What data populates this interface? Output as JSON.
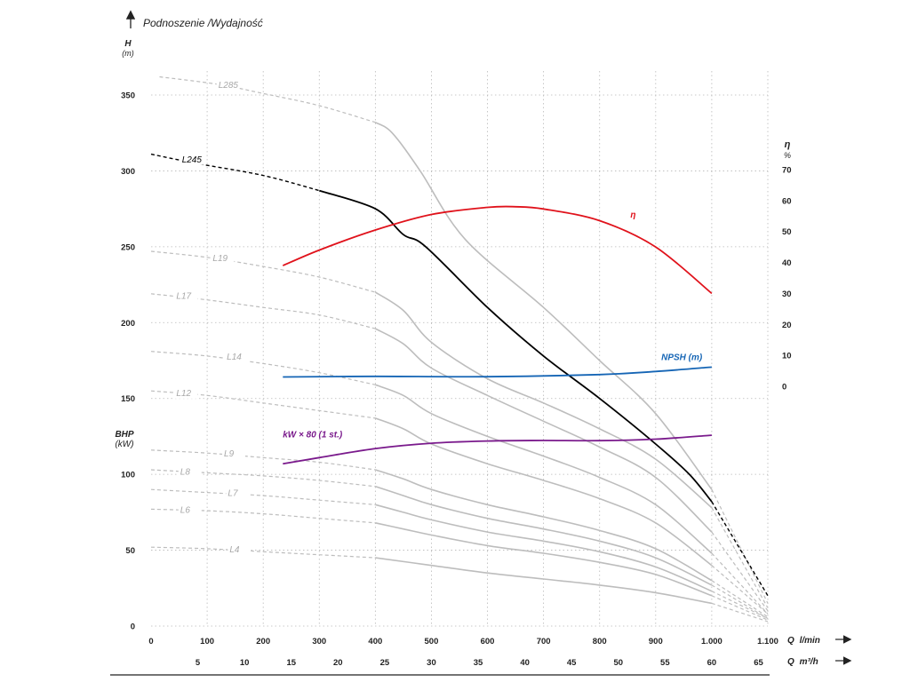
{
  "header": {
    "title": "Podnoszenie /Wydajność"
  },
  "chart_data": {
    "type": "line",
    "title": "Podnoszenie /Wydajność",
    "y_left": {
      "label": "H",
      "unit": "(m)",
      "ylim": [
        0,
        360
      ],
      "ticks": [
        0,
        50,
        100,
        150,
        200,
        250,
        300,
        350
      ]
    },
    "y_left_secondary": {
      "label": "BHP",
      "unit": "(kW)"
    },
    "y_right": {
      "label": "η",
      "unit": "%",
      "ylim": [
        0,
        70
      ],
      "ticks": [
        0,
        10,
        20,
        30,
        40,
        50,
        60,
        70
      ]
    },
    "x_primary": {
      "label": "Q",
      "unit": "l/min",
      "xlim": [
        0,
        1100
      ],
      "ticks": [
        0,
        100,
        200,
        300,
        400,
        500,
        600,
        700,
        800,
        900,
        1000,
        1100
      ],
      "tick_labels": [
        "0",
        "100",
        "200",
        "300",
        "400",
        "500",
        "600",
        "700",
        "800",
        "900",
        "1.000",
        "1.100"
      ]
    },
    "x_secondary": {
      "label": "Q",
      "unit": "m³/h",
      "ticks": [
        5,
        10,
        15,
        20,
        25,
        30,
        35,
        40,
        45,
        50,
        55,
        60,
        65
      ]
    },
    "grid": true,
    "series": [
      {
        "name": "L285",
        "color": "#bdbdbd",
        "x": [
          15,
          120,
          200,
          300,
          400,
          430,
          480,
          560,
          700,
          800,
          900,
          1000,
          1100
        ],
        "y": [
          362,
          357,
          351,
          343,
          332,
          325,
          300,
          255,
          210,
          175,
          140,
          90,
          15
        ]
      },
      {
        "name": "L245",
        "color": "#000000",
        "highlighted": true,
        "x": [
          0,
          80,
          200,
          300,
          400,
          450,
          490,
          600,
          700,
          800,
          900,
          960,
          1000,
          1100
        ],
        "y": [
          311,
          305,
          297,
          287,
          275,
          258,
          250,
          210,
          178,
          150,
          120,
          100,
          82,
          20
        ]
      },
      {
        "name": "L19",
        "color": "#bdbdbd",
        "x": [
          0,
          100,
          200,
          300,
          400,
          450,
          500,
          600,
          700,
          800,
          900,
          1000,
          1100
        ],
        "y": [
          247,
          243,
          237,
          230,
          220,
          208,
          187,
          163,
          147,
          130,
          110,
          78,
          12
        ]
      },
      {
        "name": "L17",
        "color": "#bdbdbd",
        "x": [
          0,
          100,
          200,
          300,
          400,
          450,
          500,
          600,
          700,
          800,
          900,
          1000,
          1100
        ],
        "y": [
          219,
          215,
          210,
          205,
          196,
          186,
          170,
          152,
          135,
          118,
          98,
          62,
          10
        ]
      },
      {
        "name": "L14",
        "color": "#bdbdbd",
        "x": [
          0,
          100,
          200,
          300,
          400,
          450,
          500,
          600,
          700,
          800,
          900,
          1000,
          1100
        ],
        "y": [
          181,
          178,
          173,
          167,
          159,
          152,
          140,
          125,
          112,
          98,
          80,
          48,
          8
        ]
      },
      {
        "name": "L12",
        "color": "#bdbdbd",
        "x": [
          0,
          100,
          200,
          300,
          400,
          450,
          500,
          600,
          700,
          800,
          900,
          1000,
          1100
        ],
        "y": [
          155,
          152,
          147,
          142,
          137,
          130,
          120,
          107,
          96,
          84,
          68,
          40,
          8
        ]
      },
      {
        "name": "L9",
        "color": "#bdbdbd",
        "x": [
          0,
          100,
          200,
          300,
          400,
          450,
          500,
          600,
          700,
          800,
          900,
          1000,
          1100
        ],
        "y": [
          116,
          114,
          111,
          108,
          103,
          97,
          90,
          80,
          72,
          63,
          51,
          30,
          6
        ]
      },
      {
        "name": "L8",
        "color": "#bdbdbd",
        "x": [
          0,
          100,
          200,
          300,
          400,
          450,
          500,
          600,
          700,
          800,
          900,
          1000,
          1100
        ],
        "y": [
          103,
          101,
          99,
          96,
          92,
          86,
          80,
          71,
          64,
          56,
          45,
          27,
          5
        ]
      },
      {
        "name": "L7",
        "color": "#bdbdbd",
        "x": [
          0,
          100,
          200,
          300,
          400,
          450,
          500,
          600,
          700,
          800,
          900,
          1000,
          1100
        ],
        "y": [
          90,
          88,
          86,
          83,
          80,
          75,
          70,
          62,
          56,
          49,
          39,
          23,
          5
        ]
      },
      {
        "name": "L6",
        "color": "#bdbdbd",
        "x": [
          0,
          100,
          200,
          300,
          400,
          450,
          500,
          600,
          700,
          800,
          900,
          1000,
          1100
        ],
        "y": [
          77,
          76,
          74,
          71,
          68,
          64,
          60,
          53,
          48,
          42,
          34,
          20,
          4
        ]
      },
      {
        "name": "L4",
        "color": "#bdbdbd",
        "x": [
          0,
          100,
          200,
          300,
          400,
          500,
          600,
          700,
          800,
          900,
          1000,
          1100
        ],
        "y": [
          52,
          51,
          49,
          47,
          45,
          40,
          35,
          31,
          27,
          22,
          15,
          3
        ]
      },
      {
        "name": "η",
        "color": "#e0121b",
        "axis": "right",
        "x": [
          235,
          300,
          400,
          500,
          600,
          650,
          700,
          800,
          900,
          1000
        ],
        "y": [
          39,
          44,
          50.5,
          55.5,
          57.8,
          58,
          57.3,
          53.5,
          45,
          30
        ]
      },
      {
        "name": "NPSH (m)",
        "color": "#1565b5",
        "axis": "right",
        "x": [
          235,
          400,
          600,
          800,
          900,
          1000
        ],
        "y": [
          3.0,
          3.2,
          3.1,
          3.8,
          4.8,
          6.2
        ]
      },
      {
        "name": "kW × 80 (1 st.)",
        "color": "#7a1a8c",
        "x": [
          235,
          300,
          400,
          500,
          600,
          700,
          800,
          900,
          1000
        ],
        "y": [
          107,
          111,
          117,
          120.5,
          122,
          122.3,
          122.2,
          123.2,
          125.8
        ]
      }
    ]
  }
}
